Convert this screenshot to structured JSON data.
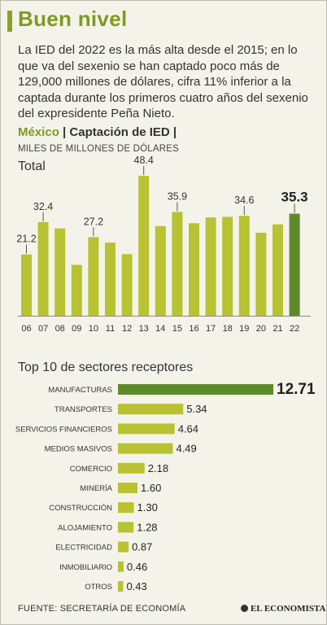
{
  "title": "Buen nivel",
  "intro": "La IED del 2022 es la más alta desde el 2015; en lo que va del sexenio se han captado poco más de 129,000 millones de dólares, cifra 11% inferior a la captada durante los primeros cuatro años del sexenio del expresidente Peña Nieto.",
  "subtitle_country": "México",
  "subtitle_sep": " | ",
  "subtitle_main": "Captación de IED",
  "subtitle_end": " |",
  "units": "MILES DE MILLONES DE DÓLARES",
  "total_label": "Total",
  "top10_label": "Top 10 de sectores receptores",
  "source": "FUENTE: SECRETARÍA DE ECONOMÍA",
  "brand": "EL ECONOMISTA",
  "colors": {
    "accent": "#7e9a22",
    "bar": "#b8c232",
    "highlight": "#5f8a2c"
  },
  "chart_data": [
    {
      "type": "bar",
      "title": "Total",
      "categories": [
        "06",
        "07",
        "08",
        "09",
        "10",
        "11",
        "12",
        "13",
        "14",
        "15",
        "16",
        "17",
        "18",
        "19",
        "20",
        "21",
        "22"
      ],
      "values": [
        21.2,
        32.4,
        30.2,
        17.6,
        27.2,
        25.3,
        21.3,
        48.4,
        31.0,
        35.9,
        32.0,
        34.0,
        34.2,
        34.6,
        28.7,
        31.6,
        35.3
      ],
      "data_labels": {
        "06": "21.2",
        "07": "32.4",
        "10": "27.2",
        "13": "48.4",
        "15": "35.9",
        "19": "34.6",
        "22": "35.3"
      },
      "highlight": "22",
      "ylim": [
        0,
        50
      ]
    },
    {
      "type": "bar",
      "orientation": "horizontal",
      "title": "Top 10 de sectores receptores",
      "categories": [
        "MANUFACTURAS",
        "TRANSPORTES",
        "SERVICIOS FINANCIEROS",
        "MEDIOS MASIVOS",
        "COMERCIO",
        "MINERÍA",
        "CONSTRUCCIÓN",
        "ALOJAMIENTO",
        "ELECTRICIDAD",
        "INMOBILIARIO",
        "OTROS"
      ],
      "values": [
        12.71,
        5.34,
        4.64,
        4.49,
        2.18,
        1.6,
        1.3,
        1.28,
        0.87,
        0.46,
        0.43
      ],
      "labels": [
        "12.71",
        "5.34",
        "4.64",
        "4.49",
        "2.18",
        "1.60",
        "1.30",
        "1.28",
        "0.87",
        "0.46",
        "0.43"
      ],
      "highlight": "MANUFACTURAS"
    }
  ]
}
